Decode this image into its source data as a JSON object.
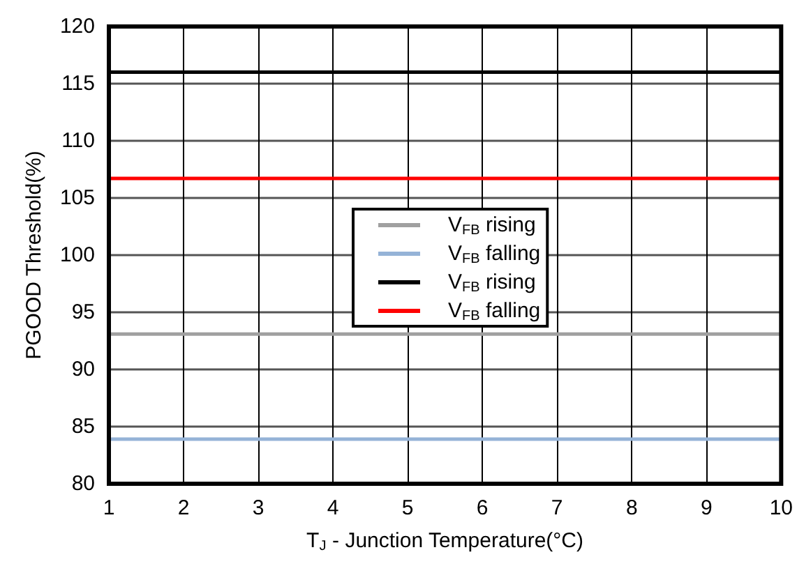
{
  "chart_data": {
    "type": "line",
    "xlabel": "T$_{J}$ - Junction Temperature(°C)",
    "ylabel": "PGOOD Threshold(%)",
    "x": [
      1,
      10
    ],
    "xlim": [
      1,
      10
    ],
    "xticks": [
      1,
      2,
      3,
      4,
      5,
      6,
      7,
      8,
      9,
      10
    ],
    "ylim": [
      80,
      120
    ],
    "yticks": [
      80,
      85,
      90,
      95,
      100,
      105,
      110,
      115,
      120
    ],
    "series": [
      {
        "name": "V$_{FB}$ rising",
        "color": "#a0a0a0",
        "values": [
          93.1,
          93.1
        ]
      },
      {
        "name": "V$_{FB}$ falling",
        "color": "#95b3d7",
        "values": [
          83.9,
          83.9
        ]
      },
      {
        "name": "V$_{FB}$ rising",
        "color": "#000000",
        "values": [
          116,
          116
        ]
      },
      {
        "name": "V$_{FB}$ falling",
        "color": "#ff0000",
        "values": [
          106.7,
          106.7
        ]
      }
    ],
    "grid": true,
    "legend": "center",
    "marker": "none",
    "line_style": "solid"
  }
}
